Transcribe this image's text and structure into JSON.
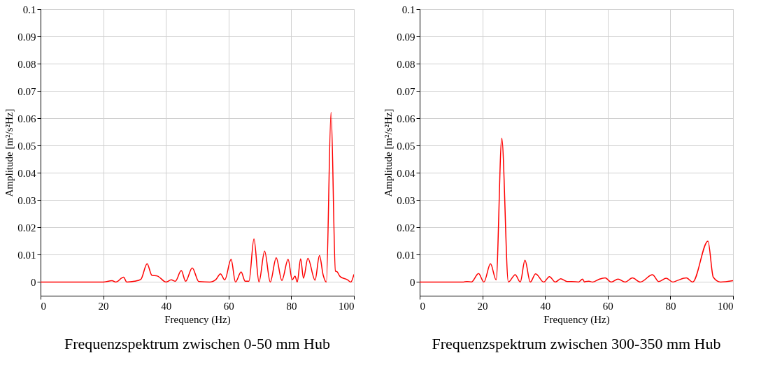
{
  "chart_data": [
    {
      "type": "line",
      "title": "Frequenzspektrum zwischen 0-50 mm Hub",
      "xlabel": "Frequency (Hz)",
      "ylabel": "Amplitude [m²/s²Hz]",
      "xlim": [
        0,
        100
      ],
      "ylim": [
        -0.005,
        0.1
      ],
      "xticks": [
        0,
        20,
        40,
        60,
        80,
        100
      ],
      "yticks": [
        0,
        0.01,
        0.02,
        0.03,
        0.04,
        0.05,
        0.06,
        0.07,
        0.08,
        0.09,
        0.1
      ],
      "grid": true,
      "line_style": "solid",
      "series": [
        {
          "color": "#ff0000",
          "x": [
            0,
            20,
            22.8,
            24,
            26.5,
            27.5,
            30,
            32,
            34,
            35.5,
            37.3,
            40.1,
            41.7,
            43,
            44.9,
            46.3,
            48.4,
            50.5,
            54,
            56,
            57.4,
            58.8,
            60.8,
            62.2,
            64,
            65.3,
            66.5,
            68.1,
            69.7,
            71.5,
            73.3,
            75.2,
            77,
            79,
            80.3,
            81.2,
            81.9,
            83,
            83.9,
            85.3,
            87.6,
            89,
            90.2,
            91.2,
            92.7,
            94.1,
            94.6,
            95.6,
            98,
            99,
            100
          ],
          "values": [
            0,
            0,
            0.0005,
            0,
            0.0018,
            0,
            0.0003,
            0.001,
            0.0067,
            0.0025,
            0.0022,
            0,
            0.0008,
            0.0003,
            0.0042,
            0.0003,
            0.0052,
            0.0002,
            0,
            0.001,
            0.003,
            0.0008,
            0.0083,
            0,
            0.0037,
            0.0003,
            0.0003,
            0.0158,
            0,
            0.0113,
            0,
            0.0089,
            0.0006,
            0.0083,
            0.0008,
            0.0022,
            0,
            0.0085,
            0.0014,
            0.0087,
            0.0007,
            0.0097,
            0.0025,
            0,
            0.0622,
            0.004,
            0.0038,
            0.002,
            0.0008,
            0,
            0.0028
          ]
        }
      ]
    },
    {
      "type": "line",
      "title": "Frequenzspektrum zwischen 300-350 mm Hub",
      "xlabel": "Frequency (Hz)",
      "ylabel": "Amplitude [m²/s²Hz]",
      "xlim": [
        0,
        100
      ],
      "ylim": [
        -0.005,
        0.1
      ],
      "xticks": [
        0,
        20,
        40,
        60,
        80,
        100
      ],
      "yticks": [
        0,
        0.01,
        0.02,
        0.03,
        0.04,
        0.05,
        0.06,
        0.07,
        0.08,
        0.09,
        0.1
      ],
      "grid": true,
      "line_style": "solid",
      "series": [
        {
          "color": "#ff0000",
          "x": [
            0,
            14,
            15.1,
            16.5,
            18.8,
            20.5,
            22.6,
            24.4,
            26.2,
            28.3,
            30.5,
            32.1,
            33.6,
            35.3,
            37,
            39.6,
            41.4,
            43.3,
            45,
            47,
            48.5,
            50.7,
            52,
            52.6,
            52.9,
            54,
            55.2,
            57.4,
            59.2,
            61.1,
            63.3,
            65.6,
            67.9,
            70.4,
            74.3,
            76.3,
            78.7,
            80.8,
            82.3,
            85.1,
            87.1,
            92,
            93.7,
            96,
            100
          ],
          "values": [
            0,
            0,
            0.0002,
            0,
            0.0031,
            0,
            0.0067,
            0.0008,
            0.0527,
            0,
            0.0027,
            0,
            0.008,
            0,
            0.003,
            0,
            0.002,
            0,
            0.0012,
            0.0002,
            0.0002,
            0,
            0.0011,
            0,
            0.0002,
            0.0003,
            0,
            0.0011,
            0.0015,
            0,
            0.0011,
            0,
            0.0015,
            0,
            0.0027,
            0.0002,
            0.0014,
            0,
            0.0006,
            0.0015,
            0,
            0.015,
            0.0018,
            0,
            0.0005
          ]
        }
      ]
    }
  ]
}
